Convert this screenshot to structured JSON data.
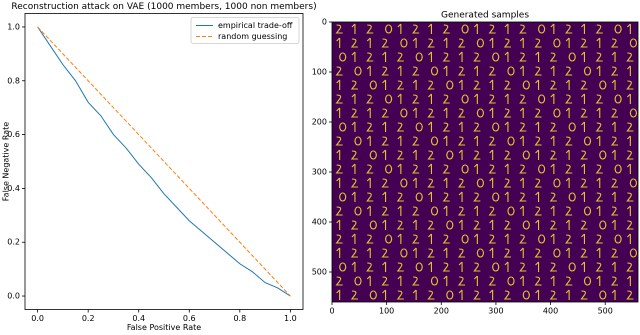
{
  "chart_data": [
    {
      "type": "line",
      "title": "Reconstruction attack on VAE (1000 members, 1000 non members)",
      "xlabel": "False Positive Rate",
      "ylabel": "False Negative Rate",
      "xlim": [
        -0.05,
        1.05
      ],
      "ylim": [
        -0.05,
        1.05
      ],
      "xticks": [
        {
          "value": 0,
          "label": "0.0"
        },
        0.2,
        0.4,
        0.6,
        0.8,
        {
          "value": 1,
          "label": "1.0"
        }
      ],
      "yticks": [
        {
          "value": 0,
          "label": "0.0"
        },
        0.2,
        0.4,
        0.6,
        0.8,
        {
          "value": 1,
          "label": "1.0"
        }
      ],
      "legend": "upper right",
      "series": [
        {
          "name": "empirical trade-off",
          "color": "#1f77b4",
          "dash": false,
          "x": [
            0,
            0.05,
            0.1,
            0.15,
            0.2,
            0.25,
            0.3,
            0.35,
            0.4,
            0.45,
            0.5,
            0.55,
            0.6,
            0.65,
            0.7,
            0.75,
            0.8,
            0.85,
            0.9,
            0.95,
            1
          ],
          "values": [
            1,
            0.93,
            0.86,
            0.8,
            0.72,
            0.67,
            0.6,
            0.55,
            0.49,
            0.44,
            0.38,
            0.33,
            0.28,
            0.24,
            0.2,
            0.16,
            0.12,
            0.09,
            0.05,
            0.03,
            0
          ]
        },
        {
          "name": "random guessing",
          "color": "#ff7f0e",
          "dash": true,
          "x": [
            0,
            1
          ],
          "values": [
            1,
            0
          ]
        }
      ]
    },
    {
      "type": "image",
      "title": "Generated samples",
      "xlim": [
        0,
        560
      ],
      "ylim": [
        560,
        0
      ],
      "xticks": [
        0,
        100,
        200,
        300,
        400,
        500
      ],
      "yticks": [
        0,
        100,
        200,
        300,
        400,
        500
      ],
      "color": "#440154"
    }
  ]
}
